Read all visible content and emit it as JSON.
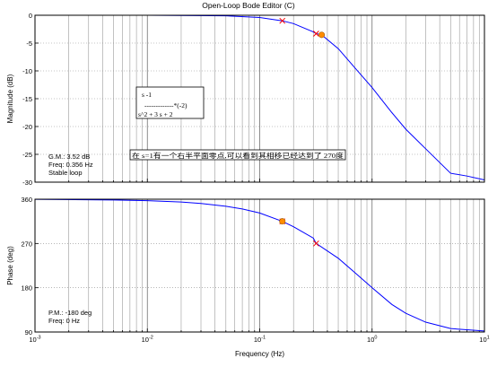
{
  "window": {
    "title": "Open-Loop Bode Editor (C)"
  },
  "chart_data": [
    {
      "type": "line",
      "panel": "magnitude",
      "ylabel": "Magnitude (dB)",
      "xscale": "log",
      "xlim": [
        0.001,
        10
      ],
      "ylim": [
        -30,
        0
      ],
      "yticks": [
        0,
        -5,
        -10,
        -15,
        -20,
        -25,
        -30
      ],
      "grid": true,
      "series": [
        {
          "color": "#0000ff",
          "x": [
            0.001,
            0.01,
            0.05,
            0.1,
            0.159,
            0.2,
            0.3,
            0.318,
            0.356,
            0.5,
            0.7,
            1,
            1.5,
            2,
            3,
            5,
            7,
            10
          ],
          "y": [
            0,
            0,
            -0.1,
            -0.4,
            -1,
            -1.5,
            -3,
            -3.3,
            -3.52,
            -6,
            -9.4,
            -13,
            -17.5,
            -20.5,
            -24,
            -28.4,
            -28.9,
            -29.6
          ]
        }
      ],
      "markers": [
        {
          "shape": "x",
          "color": "#ff0000",
          "x": 0.159,
          "y": -1
        },
        {
          "shape": "x",
          "color": "#ff0000",
          "x": 0.318,
          "y": -3.3
        },
        {
          "shape": "dot",
          "color": "#ff8c00",
          "x": 0.356,
          "y": -3.52
        }
      ],
      "annotations": {
        "compensator": {
          "num": "s -1",
          "dashes": "-------------*(-2)",
          "den": "s^2 + 3 s + 2"
        },
        "note": "在 s=1有一个右半平面零点,可以看到其相移已经达到了 270度",
        "margins": [
          "G.M.: 3.52 dB",
          "Freq: 0.356 Hz",
          "Stable loop"
        ]
      }
    },
    {
      "type": "line",
      "panel": "phase",
      "ylabel": "Phase (deg)",
      "xlabel": "Frequency (Hz)",
      "xscale": "log",
      "xlim": [
        0.001,
        10
      ],
      "ylim": [
        90,
        360
      ],
      "yticks": [
        360,
        270,
        180,
        90
      ],
      "xtick_labels": [
        {
          "base": "10",
          "exp": "-3"
        },
        {
          "base": "10",
          "exp": "-2"
        },
        {
          "base": "10",
          "exp": "-1"
        },
        {
          "base": "10",
          "exp": "0"
        },
        {
          "base": "10",
          "exp": "1"
        }
      ],
      "grid": true,
      "series": [
        {
          "color": "#0000ff",
          "x": [
            0.001,
            0.005,
            0.01,
            0.02,
            0.03,
            0.05,
            0.07,
            0.1,
            0.159,
            0.2,
            0.3,
            0.318,
            0.5,
            0.7,
            1,
            1.5,
            2,
            3,
            5,
            10
          ],
          "y": [
            359.7,
            358.5,
            357,
            354.3,
            351.4,
            345.7,
            340.1,
            332,
            315,
            304,
            281,
            270,
            240,
            211,
            180,
            146,
            128,
            110,
            97,
            92
          ]
        }
      ],
      "markers": [
        {
          "shape": "x",
          "color": "#ff0000",
          "x": 0.159,
          "y": 315
        },
        {
          "shape": "x",
          "color": "#ff0000",
          "x": 0.318,
          "y": 270
        },
        {
          "shape": "dot",
          "color": "#ff8c00",
          "x": 0.159,
          "y": 315
        }
      ],
      "annotations": {
        "margins": [
          "P.M.: -180 deg",
          "Freq: 0 Hz"
        ]
      }
    }
  ]
}
